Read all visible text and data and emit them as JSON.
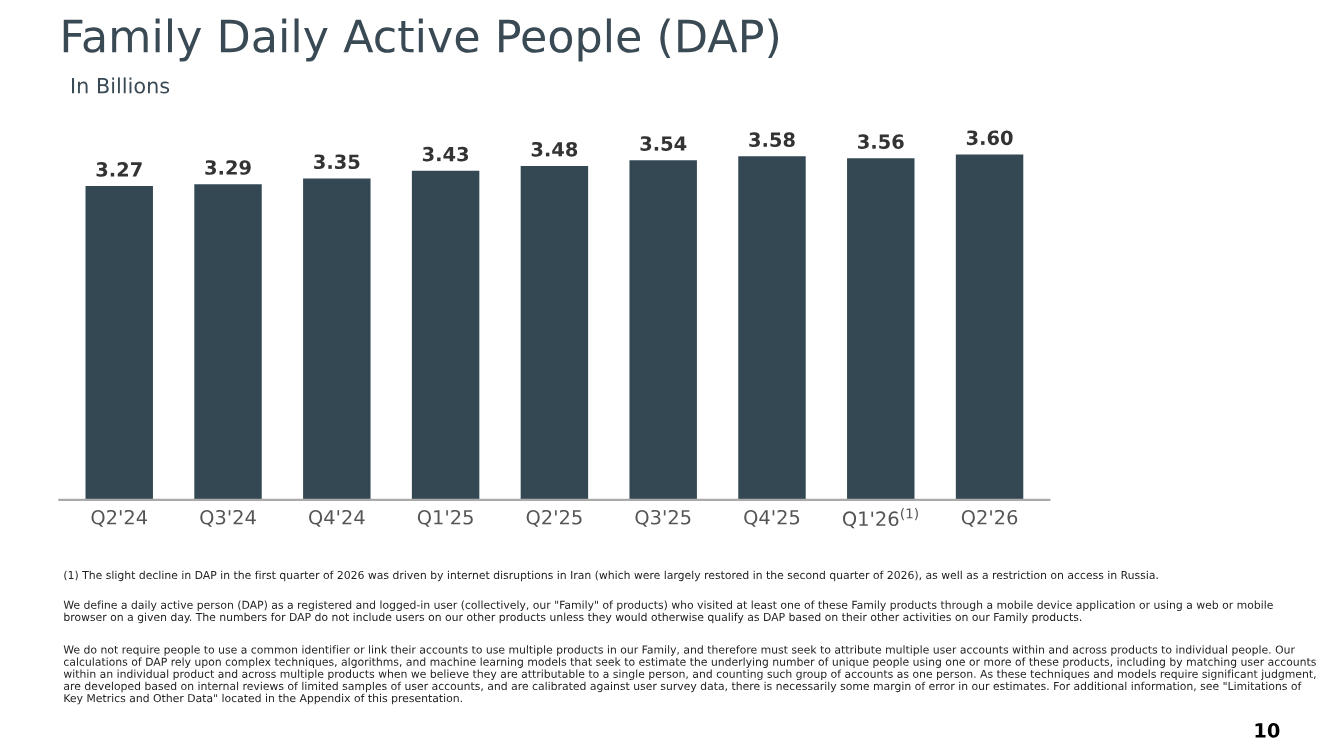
{
  "chart_data": {
    "type": "bar",
    "title": "Family Daily Active People (DAP)",
    "subtitle": "In Billions",
    "categories": [
      "Q2'24",
      "Q3'24",
      "Q4'24",
      "Q1'25",
      "Q2'25",
      "Q3'25",
      "Q4'25",
      "Q1'26$^{(1)}$",
      "Q2'26"
    ],
    "values": [
      3.27,
      3.29,
      3.35,
      3.43,
      3.48,
      3.54,
      3.58,
      3.56,
      3.6
    ],
    "value_labels": [
      "3.27",
      "3.29",
      "3.35",
      "3.43",
      "3.48",
      "3.54",
      "3.58",
      "3.56",
      "3.60"
    ],
    "color": "#344854",
    "grid": false,
    "legend": false,
    "annotations": [
      "(1) The slight decline in DAP in the first quarter of 2026 was driven by internet disruptions in Iran (which were largely restored in the second quarter of 2026), as well as a restriction on access in Russia.",
      "We define a daily active person (DAP) as a registered and logged-in user (collectively, our \"Family\" of products) who visited at least one of these Family products through a mobile device application or using a web or mobile browser on a given day. The numbers for DAP do not include users on our other products unless they would otherwise qualify as DAP based on their other activities on our Family products.",
      "We do not require people to use a common identifier or link their accounts to use multiple products in our Family, and therefore must seek to attribute multiple user accounts within and across products to individual people. Our calculations of DAP rely upon complex techniques, algorithms, and machine learning models that seek to estimate the underlying number of unique people using one or more of these products, including by matching user accounts within an individual product and across multiple products when we believe they are attributable to a single person, and counting such group of accounts as one person. As these techniques and models require significant judgment, are developed based on internal reviews of limited samples of user accounts, and are calibrated against user survey data, there is necessarily some margin of error in our estimates. For additional information, see \"Limitations of Key Metrics and Other Data\" located in the Appendix of this presentation.",
      "10"
    ]
  }
}
